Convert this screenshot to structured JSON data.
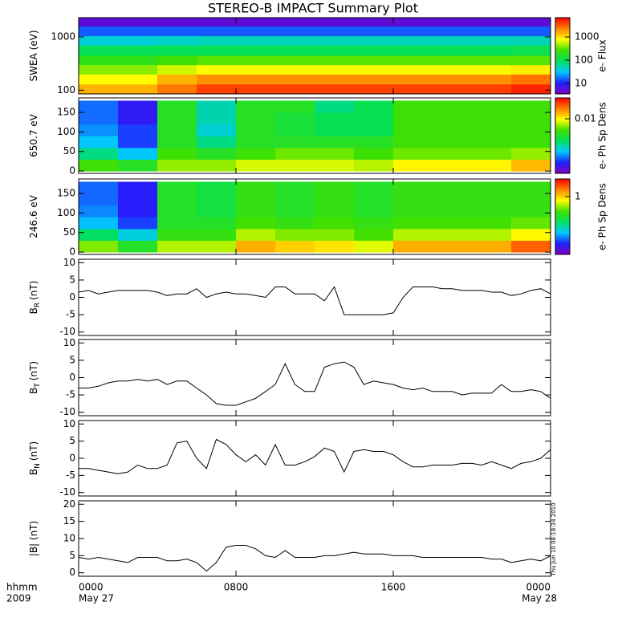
{
  "title": "STEREO-B IMPACT Summary Plot",
  "timestamp": "Thu Jun 10 08:18:34 2010",
  "x_axis": {
    "xlim": [
      0,
      24
    ],
    "xticks": [
      {
        "value": 0,
        "label": "0000"
      },
      {
        "value": 8,
        "label": "0800"
      },
      {
        "value": 16,
        "label": "1600"
      },
      {
        "value": 24,
        "label": "0000"
      }
    ],
    "date_labels": [
      "May 27",
      "May 28"
    ],
    "corner_labels": [
      "hhmm",
      "2009"
    ]
  },
  "chart_data": [
    {
      "type": "heatmap",
      "ylabel": "SWEA (eV)",
      "ylog": true,
      "ylim": [
        85,
        2300
      ],
      "yticks": [
        100,
        1000
      ],
      "x_edges": [
        0,
        2,
        4,
        6,
        8,
        10,
        12,
        14,
        16,
        18,
        20,
        22,
        24
      ],
      "y_edges": [
        85,
        130,
        200,
        300,
        450,
        700,
        1050,
        1600,
        2300
      ],
      "z": [
        [
          1500,
          800,
          400,
          200,
          100,
          40,
          15,
          5
        ],
        [
          1500,
          800,
          400,
          200,
          100,
          40,
          15,
          5
        ],
        [
          2500,
          1500,
          600,
          250,
          100,
          45,
          15,
          5
        ],
        [
          4000,
          2000,
          800,
          300,
          100,
          50,
          15,
          5
        ],
        [
          4000,
          2000,
          800,
          300,
          100,
          50,
          15,
          5
        ],
        [
          4000,
          2000,
          800,
          300,
          100,
          50,
          15,
          5
        ],
        [
          4000,
          2000,
          800,
          300,
          100,
          50,
          15,
          5
        ],
        [
          4000,
          2000,
          800,
          300,
          100,
          50,
          15,
          5
        ],
        [
          4000,
          2000,
          800,
          300,
          100,
          50,
          15,
          5
        ],
        [
          4000,
          2000,
          800,
          300,
          100,
          50,
          15,
          5
        ],
        [
          4000,
          2000,
          800,
          300,
          100,
          50,
          15,
          5
        ],
        [
          5000,
          2500,
          900,
          300,
          110,
          50,
          15,
          5
        ]
      ],
      "colorbar": {
        "label": "e- Flux",
        "log": true,
        "clim": [
          3.5,
          6800
        ],
        "ticks": [
          10,
          100,
          1000
        ],
        "colors": [
          "#8000c0",
          "#2020ff",
          "#00c8ff",
          "#00e060",
          "#40e000",
          "#ffff00",
          "#ff8000",
          "#ff0000"
        ]
      }
    },
    {
      "type": "heatmap",
      "ylabel": "650.7 eV",
      "ylim": [
        -6,
        187
      ],
      "yticks": [
        0,
        50,
        100,
        150
      ],
      "x_edges": [
        0,
        2,
        4,
        6,
        8,
        10,
        12,
        14,
        16,
        18,
        20,
        22,
        24
      ],
      "y_edges": [
        0,
        30,
        60,
        90,
        120,
        150,
        180
      ],
      "z": [
        [
          0.004,
          0.0015,
          0.0008,
          0.0006,
          0.0005,
          0.0005
        ],
        [
          0.003,
          0.0008,
          0.0004,
          0.0004,
          0.0003,
          0.0003
        ],
        [
          0.006,
          0.004,
          0.003,
          0.003,
          0.003,
          0.003
        ],
        [
          0.006,
          0.003,
          0.0015,
          0.001,
          0.0012,
          0.0012
        ],
        [
          0.008,
          0.004,
          0.003,
          0.003,
          0.003,
          0.003
        ],
        [
          0.008,
          0.005,
          0.003,
          0.0025,
          0.0025,
          0.003
        ],
        [
          0.008,
          0.005,
          0.003,
          0.002,
          0.002,
          0.0015
        ],
        [
          0.007,
          0.004,
          0.003,
          0.002,
          0.002,
          0.002
        ],
        [
          0.01,
          0.005,
          0.004,
          0.004,
          0.004,
          0.004
        ],
        [
          0.01,
          0.005,
          0.004,
          0.004,
          0.004,
          0.004
        ],
        [
          0.01,
          0.005,
          0.004,
          0.004,
          0.004,
          0.004
        ],
        [
          0.015,
          0.006,
          0.004,
          0.004,
          0.004,
          0.004
        ]
      ],
      "colorbar": {
        "label": "e- Ph Sp Dens",
        "log": true,
        "clim": [
          0.00015,
          0.05
        ],
        "ticks": [
          0.01
        ],
        "colors": [
          "#8000c0",
          "#2020ff",
          "#00c8ff",
          "#00e060",
          "#40e000",
          "#ffff00",
          "#ff8000",
          "#ff0000"
        ]
      }
    },
    {
      "type": "heatmap",
      "ylabel": "246.6 eV",
      "ylim": [
        -6,
        187
      ],
      "yticks": [
        0,
        50,
        100,
        150
      ],
      "x_edges": [
        0,
        2,
        4,
        6,
        8,
        10,
        12,
        14,
        16,
        18,
        20,
        22,
        24
      ],
      "y_edges": [
        0,
        30,
        60,
        90,
        120,
        150,
        180
      ],
      "z": [
        [
          0.5,
          0.2,
          0.1,
          0.08,
          0.07,
          0.07
        ],
        [
          0.3,
          0.12,
          0.06,
          0.05,
          0.05,
          0.05
        ],
        [
          0.6,
          0.35,
          0.3,
          0.3,
          0.3,
          0.3
        ],
        [
          0.6,
          0.35,
          0.3,
          0.25,
          0.25,
          0.25
        ],
        [
          1.2,
          0.6,
          0.4,
          0.35,
          0.35,
          0.35
        ],
        [
          1.0,
          0.5,
          0.35,
          0.3,
          0.3,
          0.3
        ],
        [
          0.9,
          0.5,
          0.4,
          0.35,
          0.35,
          0.35
        ],
        [
          0.7,
          0.4,
          0.35,
          0.3,
          0.3,
          0.3
        ],
        [
          1.2,
          0.6,
          0.4,
          0.35,
          0.35,
          0.35
        ],
        [
          1.2,
          0.6,
          0.4,
          0.35,
          0.35,
          0.35
        ],
        [
          1.2,
          0.6,
          0.4,
          0.35,
          0.35,
          0.35
        ],
        [
          1.8,
          0.8,
          0.45,
          0.35,
          0.35,
          0.35
        ]
      ],
      "colorbar": {
        "label": "e- Ph Sp Dens",
        "log": true,
        "clim": [
          0.027,
          3
        ],
        "ticks": [
          1
        ],
        "colors": [
          "#8000c0",
          "#2020ff",
          "#00c8ff",
          "#00e060",
          "#40e000",
          "#ffff00",
          "#ff8000",
          "#ff0000"
        ]
      }
    },
    {
      "type": "line",
      "ylabel": "B",
      "ylabel_sub": "R",
      "ylabel_unit": "(nT)",
      "ylim": [
        -11,
        11
      ],
      "yticks": [
        -10,
        -5,
        0,
        5,
        10
      ],
      "color": "#000000",
      "x": [
        0,
        0.5,
        1,
        1.5,
        2,
        2.5,
        3,
        3.5,
        4,
        4.5,
        5,
        5.5,
        6,
        6.5,
        7,
        7.5,
        8,
        8.5,
        9,
        9.5,
        10,
        10.5,
        11,
        11.5,
        12,
        12.5,
        13,
        13.5,
        14,
        14.5,
        15,
        15.5,
        16,
        16.5,
        17,
        17.5,
        18,
        18.5,
        19,
        19.5,
        20,
        20.5,
        21,
        21.5,
        22,
        22.5,
        23,
        23.5,
        24
      ],
      "values": [
        1.5,
        2,
        1,
        1.5,
        2,
        2,
        2,
        2,
        1.5,
        0.5,
        1,
        1,
        2.5,
        0,
        1,
        1.5,
        1,
        1,
        0.5,
        0,
        3,
        3,
        1,
        1,
        1,
        -1,
        3,
        -5,
        -5,
        -5,
        -5,
        -5,
        -4.5,
        0,
        3,
        3,
        3,
        2.5,
        2.5,
        2,
        2,
        2,
        1.5,
        1.5,
        0.5,
        1,
        2,
        2.5,
        1
      ]
    },
    {
      "type": "line",
      "ylabel": "B",
      "ylabel_sub": "T",
      "ylabel_unit": "(nT)",
      "ylim": [
        -11,
        11
      ],
      "yticks": [
        -10,
        -5,
        0,
        5,
        10
      ],
      "color": "#000000",
      "x": [
        0,
        0.5,
        1,
        1.5,
        2,
        2.5,
        3,
        3.5,
        4,
        4.5,
        5,
        5.5,
        6,
        6.5,
        7,
        7.5,
        8,
        8.5,
        9,
        9.5,
        10,
        10.5,
        11,
        11.5,
        12,
        12.5,
        13,
        13.5,
        14,
        14.5,
        15,
        15.5,
        16,
        16.5,
        17,
        17.5,
        18,
        18.5,
        19,
        19.5,
        20,
        20.5,
        21,
        21.5,
        22,
        22.5,
        23,
        23.5,
        24
      ],
      "values": [
        -3,
        -3,
        -2.5,
        -1.5,
        -1,
        -1,
        -0.5,
        -1,
        -0.5,
        -2,
        -1,
        -1,
        -3,
        -5,
        -7.5,
        -8,
        -8,
        -7,
        -6,
        -4,
        -2,
        4,
        -2,
        -4,
        -4,
        3,
        4,
        4.5,
        3,
        -2,
        -1,
        -1.5,
        -2,
        -3,
        -3.5,
        -3,
        -4,
        -4,
        -4,
        -5,
        -4.5,
        -4.5,
        -4.5,
        -2,
        -4,
        -4,
        -3.5,
        -4,
        -6
      ]
    },
    {
      "type": "line",
      "ylabel": "B",
      "ylabel_sub": "N",
      "ylabel_unit": "(nT)",
      "ylim": [
        -11,
        11
      ],
      "yticks": [
        -10,
        -5,
        0,
        5,
        10
      ],
      "color": "#000000",
      "x": [
        0,
        0.5,
        1,
        1.5,
        2,
        2.5,
        3,
        3.5,
        4,
        4.5,
        5,
        5.5,
        6,
        6.5,
        7,
        7.5,
        8,
        8.5,
        9,
        9.5,
        10,
        10.5,
        11,
        11.5,
        12,
        12.5,
        13,
        13.5,
        14,
        14.5,
        15,
        15.5,
        16,
        16.5,
        17,
        17.5,
        18,
        18.5,
        19,
        19.5,
        20,
        20.5,
        21,
        21.5,
        22,
        22.5,
        23,
        23.5,
        24
      ],
      "values": [
        -3,
        -3,
        -3.5,
        -4,
        -4.5,
        -4,
        -2,
        -3,
        -3,
        -2,
        4.5,
        5,
        0,
        -3,
        5.5,
        4,
        1,
        -1,
        1,
        -2,
        4,
        -2,
        -2,
        -1,
        0.5,
        3,
        2,
        -4,
        2,
        2.5,
        2,
        2,
        1,
        -1,
        -2.5,
        -2.5,
        -2,
        -2,
        -2,
        -1.5,
        -1.5,
        -2,
        -1,
        -2,
        -3,
        -1.5,
        -1,
        0,
        2.5
      ]
    },
    {
      "type": "line",
      "ylabel": "|B| (nT)",
      "ylim": [
        -1,
        21
      ],
      "yticks": [
        0,
        5,
        10,
        15,
        20
      ],
      "color": "#000000",
      "x": [
        0,
        0.5,
        1,
        1.5,
        2,
        2.5,
        3,
        3.5,
        4,
        4.5,
        5,
        5.5,
        6,
        6.5,
        7,
        7.5,
        8,
        8.5,
        9,
        9.5,
        10,
        10.5,
        11,
        11.5,
        12,
        12.5,
        13,
        13.5,
        14,
        14.5,
        15,
        15.5,
        16,
        16.5,
        17,
        17.5,
        18,
        18.5,
        19,
        19.5,
        20,
        20.5,
        21,
        21.5,
        22,
        22.5,
        23,
        23.5,
        24
      ],
      "values": [
        4.5,
        4,
        4.5,
        4,
        3.5,
        3,
        4.5,
        4.5,
        4.5,
        3.5,
        3.5,
        4,
        3,
        0.5,
        3,
        7.5,
        8,
        8,
        7,
        5,
        4.5,
        6.5,
        4.5,
        4.5,
        4.5,
        5,
        5,
        5.5,
        6,
        5.5,
        5.5,
        5.5,
        5,
        5,
        5,
        4.5,
        4.5,
        4.5,
        4.5,
        4.5,
        4.5,
        4.5,
        4,
        4,
        3,
        3.5,
        4,
        3.5,
        5
      ]
    }
  ]
}
